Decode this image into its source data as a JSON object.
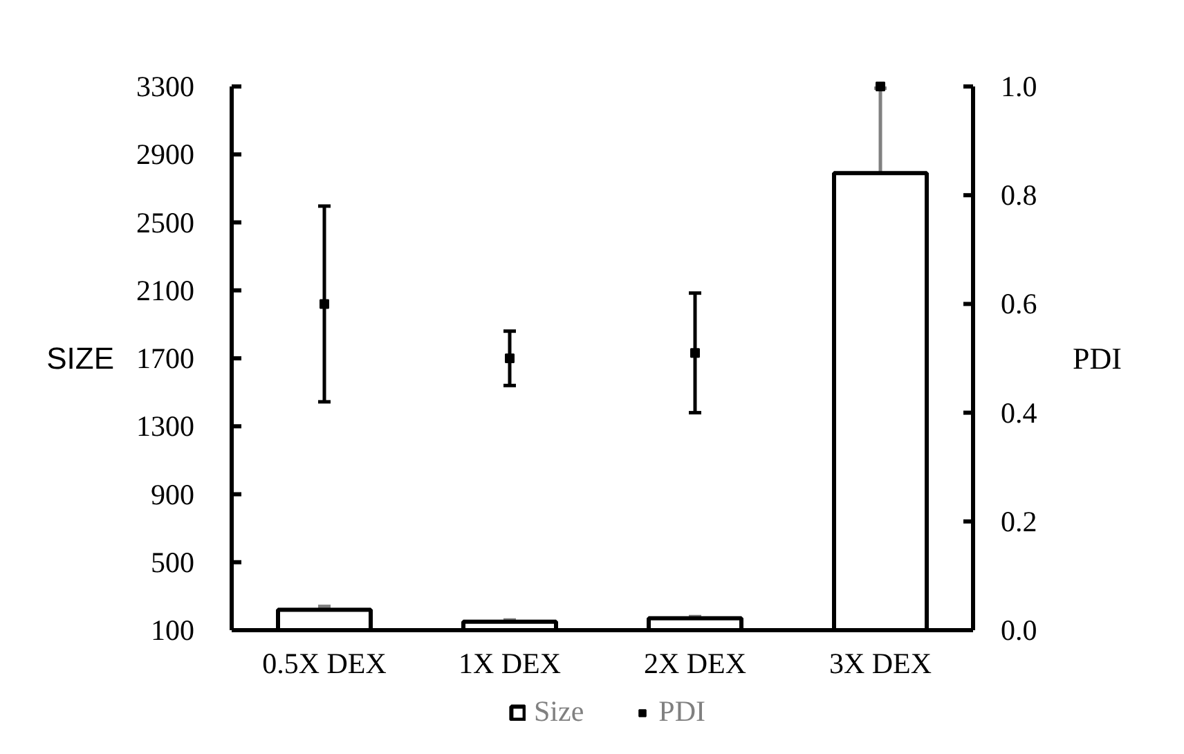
{
  "chart_data": {
    "type": "bar",
    "categories": [
      "0.5X DEX",
      "1X DEX",
      "2X DEX",
      "3X DEX"
    ],
    "ylabel": "SIZE",
    "y2label": "PDI",
    "ylim": [
      100,
      3300
    ],
    "yticks": [
      100,
      500,
      900,
      1300,
      1700,
      2100,
      2500,
      2900,
      3300
    ],
    "y2lim": [
      0,
      1.0
    ],
    "y2ticks": [
      {
        "value": 0,
        "label": "0.0"
      },
      {
        "value": 0.2,
        "label": "0.2"
      },
      {
        "value": 0.4,
        "label": "0.4"
      },
      {
        "value": 0.6,
        "label": "0.6"
      },
      {
        "value": 0.8,
        "label": "0.8"
      },
      {
        "value": 1.0,
        "label": "1.0"
      }
    ],
    "series": [
      {
        "name": "Size",
        "type": "bar",
        "color": "#ffffff",
        "values": [
          220,
          150,
          170,
          2790
        ],
        "errors": [
          20,
          10,
          10,
          500
        ]
      },
      {
        "name": "PDI",
        "type": "scatter",
        "axis": "y2",
        "color": "#000000",
        "values": [
          0.6,
          0.5,
          0.51,
          1.0
        ],
        "errors": [
          0.18,
          0.05,
          0.11,
          null
        ]
      }
    ],
    "marker": "square",
    "grid": false,
    "legend": "bottom"
  }
}
